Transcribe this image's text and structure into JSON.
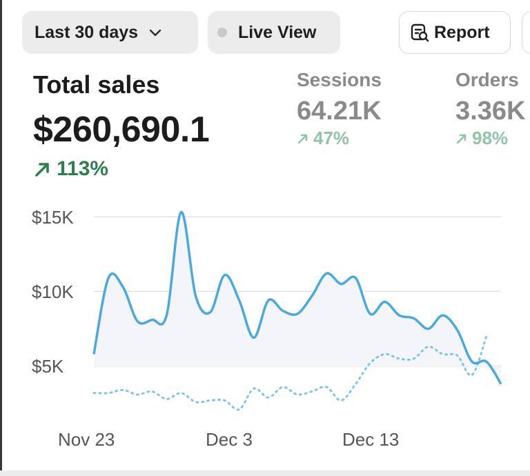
{
  "toolbar": {
    "range_label": "Last 30 days",
    "live_label": "Live View",
    "report_label": "Report"
  },
  "metrics": {
    "total_sales": {
      "label": "Total sales",
      "value": "$260,690.1",
      "change": "113%"
    },
    "sessions": {
      "label": "Sessions",
      "value": "64.21K",
      "change": "47%"
    },
    "orders": {
      "label": "Orders",
      "value": "3.36K",
      "change": "98%"
    }
  },
  "colors": {
    "current_line": "#4aa8e0",
    "comparison_line": "#7ec3ea",
    "positive": "#2e7d4f",
    "positive_muted": "#8fc4a6"
  },
  "icons": {
    "range_chevron": "chevron-down-icon",
    "live_dot": "status-dot-icon",
    "report": "report-search-icon",
    "trend": "trend-up-arrow-icon"
  },
  "chart_data": {
    "type": "line",
    "y_ticks": [
      "$15K",
      "$10K",
      "$5K"
    ],
    "x_ticks": [
      "Nov 23",
      "Dec 3",
      "Dec 13"
    ],
    "ylim": [
      0,
      15000
    ],
    "grid": true,
    "series": [
      {
        "style": "solid",
        "values": [
          5800,
          10900,
          10300,
          8000,
          8100,
          8400,
          15300,
          9700,
          8600,
          11100,
          9400,
          6900,
          9400,
          8700,
          8500,
          9700,
          11200,
          10500,
          10900,
          8500,
          9300,
          8400,
          8200,
          7500,
          8400,
          7400,
          5300,
          5300,
          3800
        ]
      },
      {
        "style": "dotted",
        "values": [
          3200,
          3200,
          3400,
          3100,
          3300,
          2800,
          3200,
          2600,
          2700,
          2700,
          2100,
          3500,
          2900,
          3600,
          3100,
          3300,
          3600,
          2700,
          3800,
          5200,
          5800,
          5500,
          5500,
          6300,
          5800,
          5700,
          4400,
          7000
        ]
      }
    ]
  }
}
